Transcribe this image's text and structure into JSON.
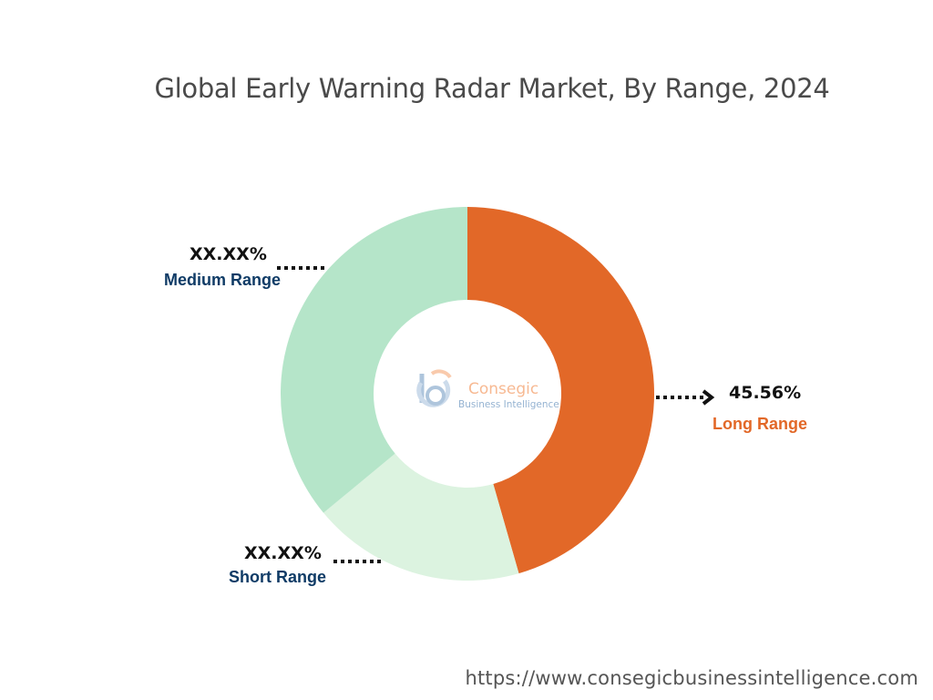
{
  "title": "Global Early Warning Radar Market, By Range, 2024",
  "chart_data": {
    "type": "pie",
    "variant": "donut",
    "categories": [
      "Long Range",
      "Short Range",
      "Medium Range"
    ],
    "values": [
      45.56,
      18.44,
      36.0
    ],
    "labels": {
      "Long Range": "45.56%",
      "Short Range": "XX.XX%",
      "Medium Range": "XX.XX%"
    },
    "colors": [
      "#e26828",
      "#dcf3e0",
      "#b5e5c9"
    ],
    "label_colors": {
      "Long Range": "#e26828",
      "Short Range": "#0f3b66",
      "Medium Range": "#0f3b66"
    }
  },
  "labels": {
    "long": {
      "pct": "45.56%",
      "name": "Long Range"
    },
    "short": {
      "pct": "XX.XX%",
      "name": "Short Range"
    },
    "medium": {
      "pct": "XX.XX%",
      "name": "Medium Range"
    }
  },
  "logo": {
    "name": "Consegic",
    "tagline": "Business Intelligence"
  },
  "footer": {
    "url": "https://www.consegicbusinessintelligence.com"
  }
}
